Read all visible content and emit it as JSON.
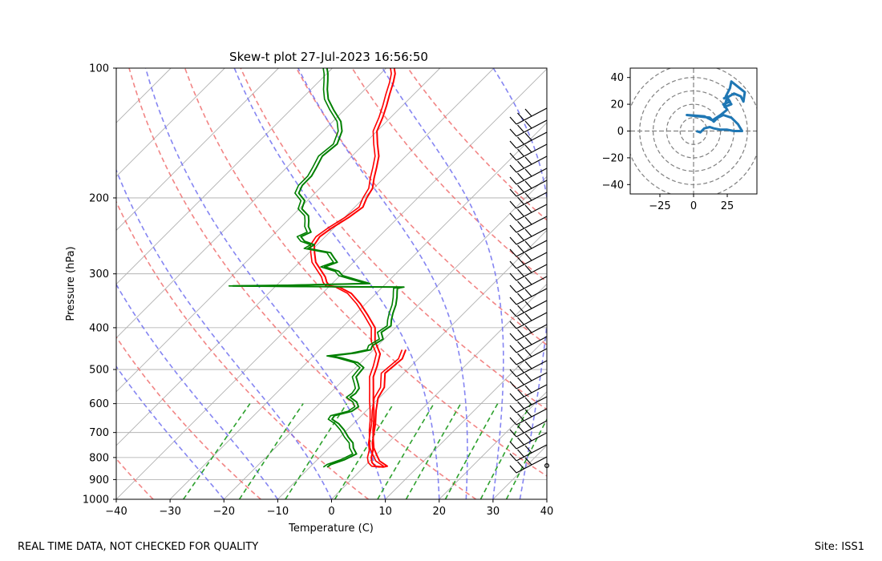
{
  "page": {
    "title": "Skew-t plot 27-Jul-2023 16:56:50",
    "footer_left": "REAL TIME DATA, NOT CHECKED FOR QUALITY",
    "footer_right": "Site: ISS1"
  },
  "colors": {
    "temperature": "#ff0000",
    "dewpoint": "#008000",
    "dry_adiabat": "#f07070",
    "moist_adiabat": "#7070f0",
    "mixing_ratio": "#2ca02c",
    "isotherm": "#b0b0b0",
    "hodograph": "#1f77b4",
    "barbs": "#000000"
  },
  "chart_data": [
    {
      "type": "line",
      "title": "Skew-t plot 27-Jul-2023 16:56:50",
      "xlabel": "Temperature (C)",
      "ylabel": "Pressure (hPa)",
      "xlim": [
        -40,
        40
      ],
      "ylim": [
        1000,
        100
      ],
      "y_scale": "log",
      "skew": "isotherms slant 45°",
      "x_ticks": [
        "−40",
        "−30",
        "−20",
        "−10",
        "0",
        "10",
        "20",
        "30",
        "40"
      ],
      "y_ticks": [
        "100",
        "200",
        "300",
        "400",
        "500",
        "600",
        "700",
        "800",
        "900",
        "1000"
      ],
      "grid": true,
      "background_lines": {
        "dry_adiabats_theta_K": [
          240,
          260,
          280,
          300,
          320,
          340,
          360,
          380,
          400
        ],
        "moist_adiabats_start_C": [
          -20,
          -10,
          0,
          10,
          20,
          25,
          30,
          35
        ],
        "mixing_ratio_gkg": [
          0.4,
          1,
          2,
          4,
          7,
          10,
          16,
          24,
          32
        ]
      },
      "series": [
        {
          "key": "temperature",
          "points": [
            [
              450,
              -14.0
            ],
            [
              472,
              -13.0
            ],
            [
              510,
              -13.5
            ],
            [
              550,
              -11.0
            ],
            [
              582,
              -10.2
            ],
            [
              623,
              -8.2
            ],
            [
              668,
              -5.9
            ],
            [
              708,
              -4.2
            ],
            [
              740,
              -2.9
            ],
            [
              770,
              -1.4
            ],
            [
              800,
              -0.4
            ],
            [
              822,
              0.7
            ],
            [
              838,
              2.0
            ],
            [
              842,
              3.6
            ],
            [
              838,
              4.2
            ],
            [
              815,
              1.8
            ],
            [
              790,
              0.2
            ],
            [
              760,
              -1.7
            ],
            [
              728,
              -3.3
            ],
            [
              690,
              -5.2
            ],
            [
              658,
              -6.7
            ],
            [
              623,
              -8.6
            ],
            [
              590,
              -10.6
            ],
            [
              560,
              -12.4
            ],
            [
              520,
              -15.0
            ],
            [
              491,
              -16.3
            ],
            [
              460,
              -18.0
            ],
            [
              430,
              -21.3
            ],
            [
              400,
              -23.8
            ],
            [
              374,
              -27.5
            ],
            [
              352,
              -31.0
            ],
            [
              333,
              -34.6
            ],
            [
              322,
              -38.0
            ],
            [
              320,
              -40.0
            ],
            [
              314,
              -41.2
            ],
            [
              305,
              -42.5
            ],
            [
              293,
              -44.8
            ],
            [
              282,
              -47.0
            ],
            [
              268,
              -49.0
            ],
            [
              257,
              -50.5
            ],
            [
              246,
              -51.0
            ],
            [
              235,
              -50.4
            ],
            [
              222,
              -49.2
            ],
            [
              210,
              -48.5
            ],
            [
              200,
              -49.5
            ],
            [
              190,
              -50.2
            ],
            [
              180,
              -51.8
            ],
            [
              170,
              -53.3
            ],
            [
              160,
              -55.0
            ],
            [
              150,
              -57.5
            ],
            [
              140,
              -60.0
            ],
            [
              130,
              -61.5
            ],
            [
              122,
              -63.0
            ],
            [
              115,
              -64.5
            ],
            [
              108,
              -66.0
            ],
            [
              103,
              -67.3
            ],
            [
              100,
              -68.5
            ]
          ]
        },
        {
          "key": "dewpoint",
          "points": [
            [
              842,
              -6.8
            ],
            [
              830,
              -6.6
            ],
            [
              810,
              -5.0
            ],
            [
              785,
              -3.8
            ],
            [
              760,
              -5.5
            ],
            [
              740,
              -6.5
            ],
            [
              718,
              -8.4
            ],
            [
              690,
              -10.6
            ],
            [
              668,
              -12.7
            ],
            [
              652,
              -14.8
            ],
            [
              640,
              -15.0
            ],
            [
              625,
              -12.6
            ],
            [
              610,
              -12.2
            ],
            [
              595,
              -13.4
            ],
            [
              580,
              -15.5
            ],
            [
              568,
              -15.2
            ],
            [
              553,
              -15.5
            ],
            [
              540,
              -16.5
            ],
            [
              520,
              -18.2
            ],
            [
              495,
              -18.5
            ],
            [
              482,
              -20.5
            ],
            [
              470,
              -24.5
            ],
            [
              465,
              -26.8
            ],
            [
              458,
              -22.8
            ],
            [
              450,
              -20.5
            ],
            [
              440,
              -21.0
            ],
            [
              425,
              -20.2
            ],
            [
              410,
              -21.8
            ],
            [
              396,
              -21.2
            ],
            [
              384,
              -22.2
            ],
            [
              370,
              -23.2
            ],
            [
              354,
              -24.2
            ],
            [
              340,
              -25.4
            ],
            [
              330,
              -26.4
            ],
            [
              324,
              -27.0
            ],
            [
              322,
              -26.0
            ],
            [
              321,
              -45.0
            ],
            [
              320,
              -58.0
            ],
            [
              319,
              -48.0
            ],
            [
              316,
              -33.0
            ],
            [
              310,
              -36.0
            ],
            [
              303,
              -39.5
            ],
            [
              296,
              -41.0
            ],
            [
              289,
              -44.5
            ],
            [
              282,
              -43.0
            ],
            [
              275,
              -44.5
            ],
            [
              268,
              -46.0
            ],
            [
              262,
              -51.0
            ],
            [
              257,
              -50.5
            ],
            [
              252,
              -53.0
            ],
            [
              246,
              -54.5
            ],
            [
              240,
              -53.5
            ],
            [
              233,
              -55.0
            ],
            [
              226,
              -56.0
            ],
            [
              220,
              -57.0
            ],
            [
              212,
              -59.5
            ],
            [
              203,
              -60.5
            ],
            [
              195,
              -63.0
            ],
            [
              187,
              -63.8
            ],
            [
              178,
              -63.8
            ],
            [
              170,
              -64.5
            ],
            [
              160,
              -65.5
            ],
            [
              150,
              -65.0
            ],
            [
              140,
              -66.5
            ],
            [
              133,
              -68.5
            ],
            [
              125,
              -72.0
            ],
            [
              118,
              -75.0
            ],
            [
              112,
              -77.0
            ],
            [
              107,
              -78.5
            ],
            [
              103,
              -79.8
            ],
            [
              100,
              -81.0
            ]
          ]
        }
      ],
      "wind_barbs": "plotted along right edge from 840 hPa to 100 hPa"
    },
    {
      "type": "line",
      "title": "",
      "xlabel": "",
      "ylabel": "",
      "xlim": [
        -47,
        47
      ],
      "ylim": [
        -47,
        47
      ],
      "x_ticks": [
        "−25",
        "0",
        "25"
      ],
      "y_ticks": [
        "40",
        "20",
        "0",
        "−20",
        "−40"
      ],
      "rings": [
        10,
        20,
        30,
        40,
        50
      ],
      "series": [
        {
          "key": "hodograph",
          "points": [
            [
              2,
              0
            ],
            [
              5,
              -1
            ],
            [
              8,
              2
            ],
            [
              12,
              3
            ],
            [
              15,
              2
            ],
            [
              20,
              1
            ],
            [
              25,
              1
            ],
            [
              30,
              0
            ],
            [
              36,
              0
            ],
            [
              33,
              5
            ],
            [
              28,
              10
            ],
            [
              22,
              12
            ],
            [
              18,
              10
            ],
            [
              15,
              7
            ],
            [
              12,
              10
            ],
            [
              -5,
              12
            ],
            [
              8,
              11
            ],
            [
              14,
              8
            ],
            [
              20,
              12
            ],
            [
              25,
              16
            ],
            [
              22,
              20
            ],
            [
              27,
              22
            ],
            [
              25,
              25
            ],
            [
              30,
              28
            ],
            [
              35,
              26
            ],
            [
              37,
              22
            ],
            [
              38,
              29
            ],
            [
              28,
              37
            ],
            [
              27,
              32
            ],
            [
              24,
              26
            ],
            [
              28,
              20
            ],
            [
              23,
              18
            ],
            [
              25,
              26
            ],
            [
              22,
              24
            ]
          ]
        }
      ]
    }
  ]
}
